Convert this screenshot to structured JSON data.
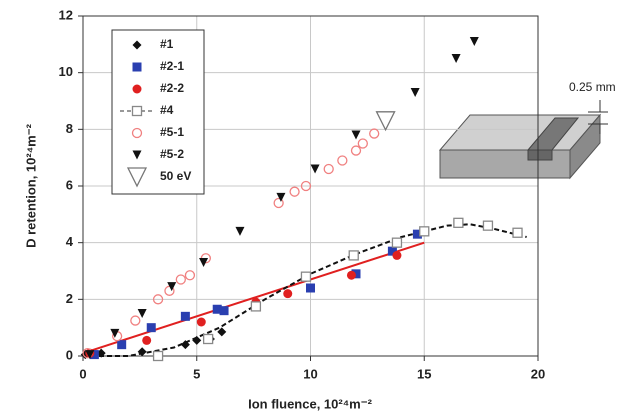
{
  "chart_data": {
    "type": "scatter",
    "xlabel": "Ion fluence, 10²⁴m⁻²",
    "ylabel": "D retention, 10²⁴m⁻²",
    "xlim": [
      0,
      20
    ],
    "xticks": [
      0,
      5,
      10,
      15,
      20
    ],
    "ylim": [
      0,
      12
    ],
    "yticks": [
      0,
      2,
      4,
      6,
      8,
      10,
      12
    ],
    "grid": true,
    "legend": "upper left",
    "annotation": "0.25 mm",
    "series": [
      {
        "name": "#1",
        "color": "#111111",
        "label_color": "#111111",
        "marker": "diamond",
        "x": [
          0.1,
          0.8,
          2.6,
          3.3,
          4.5,
          5.0,
          5.6,
          6.1
        ],
        "values": [
          0.05,
          0.1,
          0.15,
          0.05,
          0.4,
          0.55,
          0.6,
          0.85
        ]
      },
      {
        "name": "#2-1",
        "color": "#2a3fb0",
        "label_color": "#2a3fb0",
        "marker": "square",
        "x": [
          0.5,
          1.7,
          3.0,
          4.5,
          5.9,
          6.2,
          10.0,
          12.0,
          13.6,
          14.7
        ],
        "values": [
          0.05,
          0.4,
          1.0,
          1.4,
          1.65,
          1.6,
          2.4,
          2.9,
          3.7,
          4.3
        ]
      },
      {
        "name": "#2-2",
        "color": "#e02020",
        "label_color": "#e02020",
        "marker": "circle",
        "x": [
          0.3,
          2.8,
          5.2,
          7.6,
          9.0,
          11.8,
          13.8
        ],
        "values": [
          0.1,
          0.55,
          1.2,
          1.9,
          2.2,
          2.85,
          3.55
        ]
      },
      {
        "name": "#4",
        "color": "#888888",
        "label_color": "#111111",
        "marker": "open-square",
        "legend_dash": true,
        "x": [
          3.3,
          5.5,
          7.6,
          9.8,
          11.9,
          13.8,
          15.0,
          16.5,
          17.8,
          19.1
        ],
        "values": [
          0.0,
          0.6,
          1.75,
          2.8,
          3.55,
          4.0,
          4.4,
          4.7,
          4.6,
          4.35
        ]
      },
      {
        "name": "#5-1",
        "color": "#f08080",
        "label_color": "#e02020",
        "marker": "open-circle",
        "x": [
          0.2,
          1.5,
          2.3,
          3.3,
          3.8,
          4.3,
          4.7,
          5.4,
          8.6,
          9.3,
          9.8,
          10.8,
          11.4,
          12.0,
          12.3,
          12.8
        ],
        "values": [
          0.1,
          0.7,
          1.25,
          2.0,
          2.3,
          2.7,
          2.85,
          3.45,
          5.4,
          5.8,
          6.0,
          6.6,
          6.9,
          7.25,
          7.5,
          7.85
        ]
      },
      {
        "name": "#5-2",
        "color": "#111111",
        "label_color": "#111111",
        "marker": "triangle-down",
        "x": [
          0.3,
          1.4,
          2.6,
          3.9,
          5.3,
          6.9,
          8.7,
          10.2,
          12.0,
          14.6,
          16.4,
          17.2
        ],
        "values": [
          0.05,
          0.8,
          1.5,
          2.45,
          3.3,
          4.4,
          5.6,
          6.6,
          7.8,
          9.3,
          10.5,
          11.1
        ]
      },
      {
        "name": "50 eV",
        "color": "#777777",
        "label_color": "#111111",
        "marker": "open-triangle-down",
        "x": [
          13.3
        ],
        "values": [
          8.3
        ]
      }
    ],
    "fits": [
      {
        "color": "#e02020",
        "dash": false,
        "x": [
          0,
          15
        ],
        "y": [
          0.1,
          4.0
        ]
      },
      {
        "color": "#111111",
        "dash": true,
        "x": [
          0,
          2,
          4,
          6,
          8,
          10,
          12,
          14,
          16,
          17,
          18,
          19.5
        ],
        "y": [
          0,
          0,
          0.3,
          1.0,
          2.0,
          2.9,
          3.6,
          4.2,
          4.6,
          4.65,
          4.5,
          4.2
        ]
      }
    ]
  }
}
